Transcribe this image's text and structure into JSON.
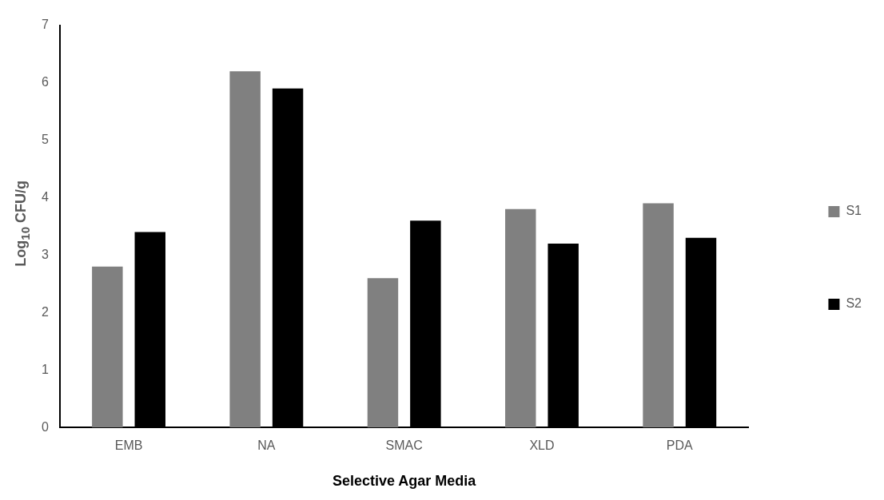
{
  "chart_data": {
    "type": "bar",
    "xlabel": "Selective Agar Media",
    "ylabel": "Log$_{10}$ CFU/g",
    "categories": [
      "EMB",
      "NA",
      "SMAC",
      "XLD",
      "PDA"
    ],
    "series": [
      {
        "name": "S1",
        "color": "#808080",
        "values": [
          2.8,
          6.2,
          2.6,
          3.8,
          3.9
        ]
      },
      {
        "name": "S2",
        "color": "#000000",
        "values": [
          3.4,
          5.9,
          3.6,
          3.2,
          3.3
        ]
      }
    ],
    "ylim": [
      0,
      7
    ],
    "yticks": [
      0,
      1,
      2,
      3,
      4,
      5,
      6,
      7
    ],
    "grid": false,
    "legend": "right"
  }
}
